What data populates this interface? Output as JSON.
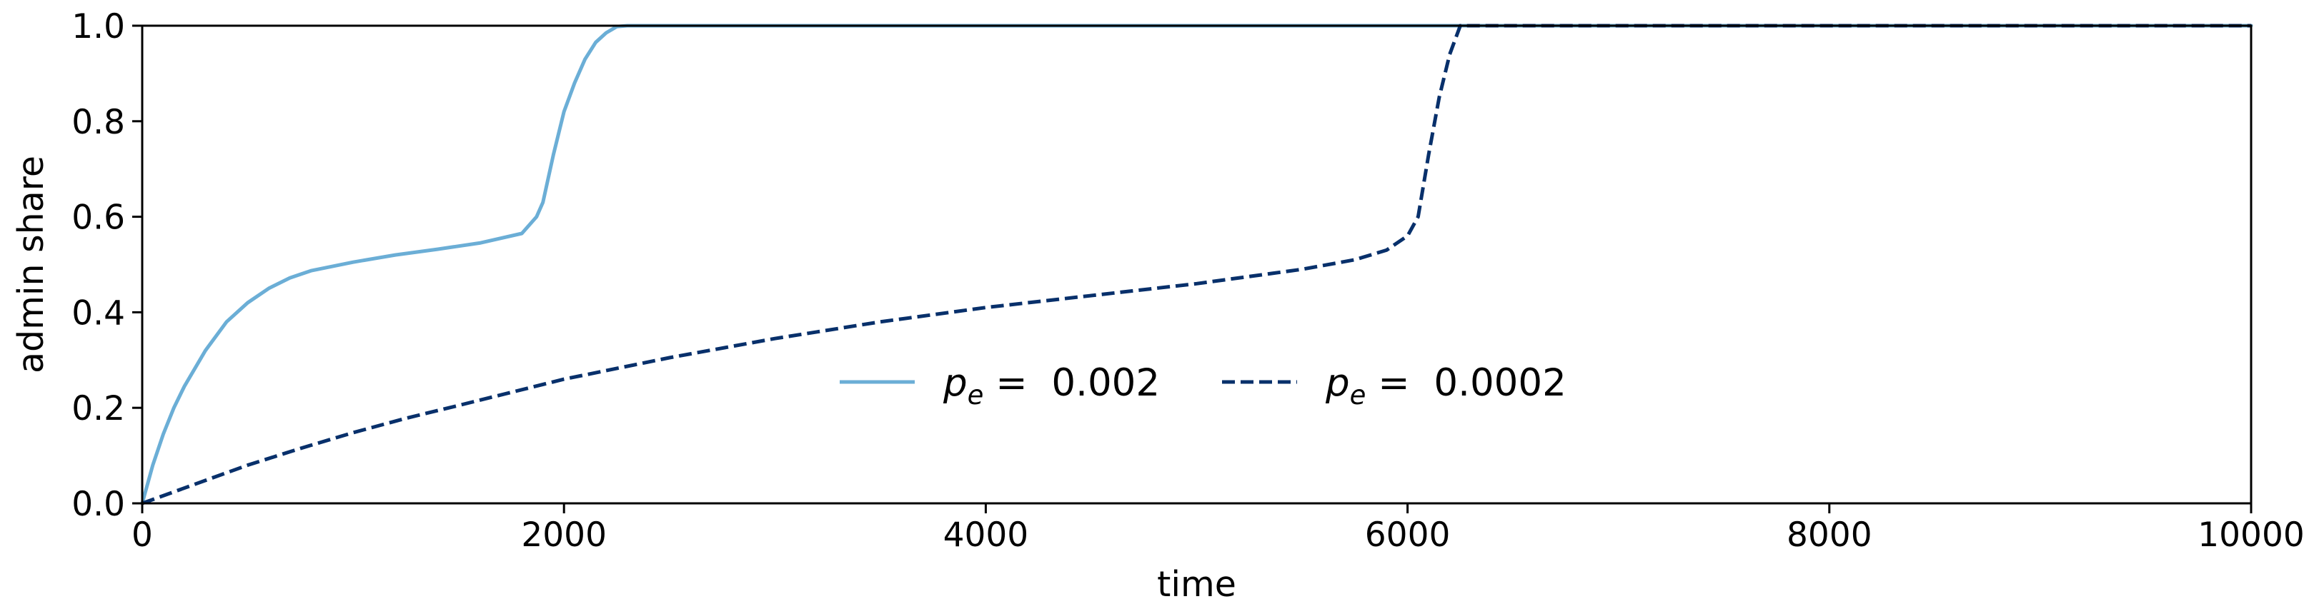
{
  "chart_data": {
    "type": "line",
    "xlabel": "time",
    "ylabel": "admin share",
    "xlim": [
      0,
      10000
    ],
    "ylim": [
      0.0,
      1.0
    ],
    "xticks": [
      "0",
      "2000",
      "4000",
      "6000",
      "8000",
      "10000"
    ],
    "yticks": [
      "0.0",
      "0.2",
      "0.4",
      "0.6",
      "0.8",
      "1.0"
    ],
    "grid": false,
    "legend_position": "center",
    "series": [
      {
        "name": "p_e = 0.002",
        "legend_symbol": "p",
        "legend_subscript": "e",
        "legend_value": " = 0.002",
        "color": "#6baed6",
        "style": "solid",
        "x": [
          0,
          50,
          100,
          150,
          200,
          300,
          400,
          500,
          600,
          700,
          800,
          1000,
          1200,
          1400,
          1600,
          1800,
          1870,
          1900,
          1950,
          2000,
          2050,
          2100,
          2150,
          2200,
          2250,
          2300,
          10000
        ],
        "y": [
          0.0,
          0.08,
          0.145,
          0.2,
          0.245,
          0.32,
          0.38,
          0.42,
          0.45,
          0.472,
          0.487,
          0.505,
          0.52,
          0.532,
          0.545,
          0.565,
          0.6,
          0.63,
          0.73,
          0.82,
          0.88,
          0.93,
          0.965,
          0.985,
          0.998,
          1.0,
          1.0
        ]
      },
      {
        "name": "p_e = 0.0002",
        "legend_symbol": "p",
        "legend_subscript": "e",
        "legend_value": " = 0.0002",
        "color": "#08306b",
        "style": "dashed",
        "x": [
          0,
          250,
          500,
          750,
          1000,
          1250,
          1500,
          2000,
          2500,
          3000,
          3500,
          4000,
          4500,
          5000,
          5500,
          5750,
          5900,
          6000,
          6050,
          6100,
          6150,
          6200,
          6250,
          6300,
          10000
        ],
        "y": [
          0.0,
          0.04,
          0.08,
          0.115,
          0.148,
          0.178,
          0.205,
          0.26,
          0.305,
          0.345,
          0.38,
          0.41,
          0.435,
          0.46,
          0.49,
          0.51,
          0.53,
          0.56,
          0.6,
          0.73,
          0.85,
          0.94,
          1.0,
          1.0,
          1.0
        ]
      }
    ]
  }
}
